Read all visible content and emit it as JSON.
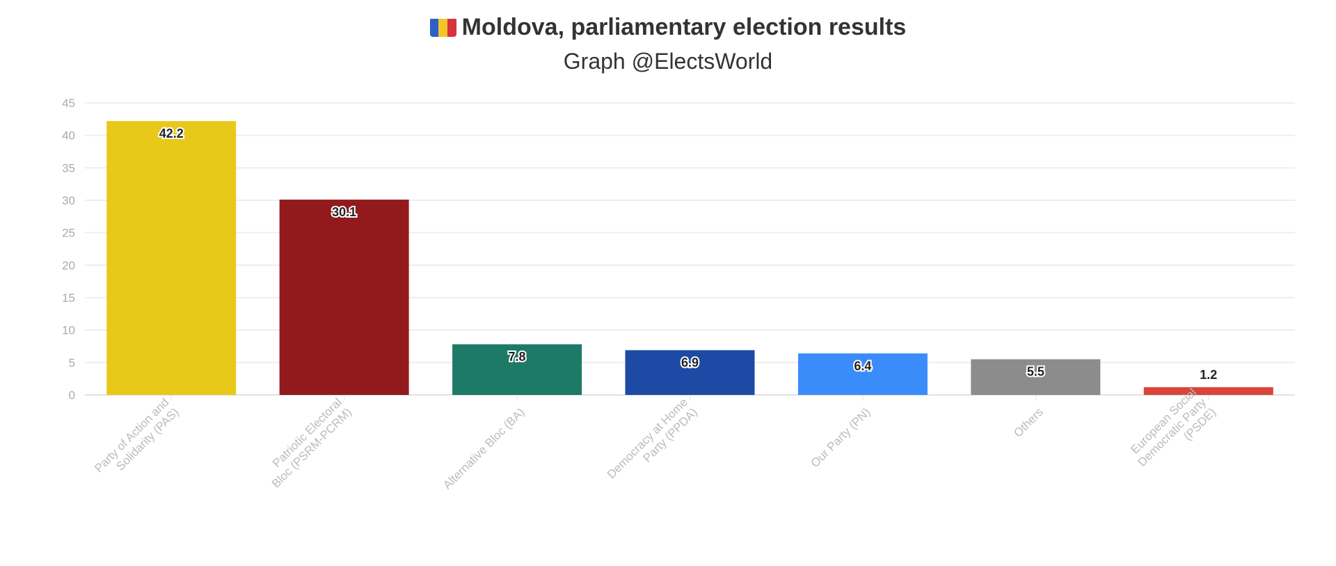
{
  "chart_data": {
    "type": "bar",
    "title": "Moldova, parliamentary election results",
    "subtitle": "Graph @ElectsWorld",
    "title_icon": "moldova-flag-icon",
    "categories": [
      "Party of Action and Solidarity (PAS)",
      "Patriotic Electoral Bloc (PSRM-PCRM)",
      "Alternative Bloc (BA)",
      "Democracy at Home Party (PPDA)",
      "Our Party (PN)",
      "Others",
      "European Social Democratic Party (PSDE)"
    ],
    "values": [
      42.2,
      30.1,
      7.8,
      6.9,
      6.4,
      5.5,
      1.2
    ],
    "value_labels": [
      "42.2",
      "30.1",
      "7.8",
      "6.9",
      "6.4",
      "5.5",
      "1.2"
    ],
    "colors": [
      "#E8C91A",
      "#921A1D",
      "#1C7A66",
      "#1D4AA5",
      "#3A8CFB",
      "#8C8C8C",
      "#D9443A"
    ],
    "xlabel": "",
    "ylabel": "",
    "ylim": [
      0,
      45
    ],
    "yticks": [
      "0",
      "5",
      "10",
      "15",
      "20",
      "25",
      "30",
      "35",
      "40",
      "45"
    ],
    "grid": true,
    "legend": "none"
  }
}
